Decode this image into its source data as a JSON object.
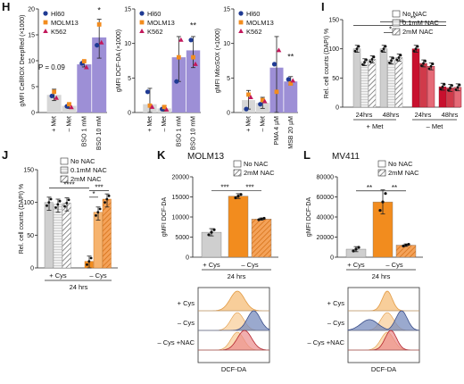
{
  "panels": {
    "H1": {
      "letter": "H",
      "ylabel": "gMFI CellROX DeepRed (×1000)",
      "yticks": [
        "0",
        "5",
        "10",
        "15",
        "20"
      ],
      "ymax": 20,
      "legend": [
        "Hl60",
        "MOLM13",
        "K562"
      ],
      "categories": [
        "+ Met",
        "– Met",
        "BSO 1 mM",
        "BSO 10 mM"
      ],
      "values": [
        3.4,
        1.3,
        9.3,
        14.5
      ],
      "colors": [
        "#d7d7d7",
        "#d7d7d7",
        "#9d8fd6",
        "#9d8fd6"
      ],
      "annotation": "P = 0.09",
      "star": "*"
    },
    "H2": {
      "ylabel": "gMFI DCF-DA (×1000)",
      "yticks": [
        "0",
        "5",
        "10",
        "15"
      ],
      "ymax": 15,
      "legend": [
        "Hl60",
        "MOLM13",
        "K562"
      ],
      "categories": [
        "+ Met",
        "– Met",
        "BSO 1 mM",
        "BSO 10 mM"
      ],
      "values": [
        1.2,
        0.6,
        8.0,
        9.0
      ],
      "colors": [
        "#d7d7d7",
        "#d7d7d7",
        "#9d8fd6",
        "#9d8fd6"
      ],
      "star": "**"
    },
    "H3": {
      "ylabel": "gMFI MitoSOX (×1000)",
      "yticks": [
        "0",
        "5",
        "10",
        "15"
      ],
      "ymax": 15,
      "legend": [
        "Hl60",
        "MOLM13",
        "K562"
      ],
      "categories": [
        "+ Met",
        "– Met",
        "PMA 4 µM",
        "MSB 20 µM"
      ],
      "values": [
        1.8,
        1.4,
        6.5,
        4.5
      ],
      "colors": [
        "#d7d7d7",
        "#d7d7d7",
        "#9d8fd6",
        "#9d8fd6"
      ],
      "star": "**"
    },
    "I": {
      "letter": "I",
      "ylabel": "Rel. cell counts (DAPI) %",
      "yticks": [
        "0",
        "50",
        "100",
        "150"
      ],
      "ymax": 150,
      "legend": [
        "No NAC",
        "0.1mM NAC",
        "2mM NAC"
      ],
      "groups": [
        "24hrs",
        "48hrs",
        "24hrs",
        "48hrs"
      ],
      "conditions": [
        "+ Met",
        "– Met"
      ],
      "values": [
        [
          100,
          77,
          82
        ],
        [
          100,
          80,
          85
        ],
        [
          100,
          75,
          70
        ],
        [
          35,
          33,
          34
        ]
      ],
      "stars": [
        "**",
        "*",
        "***"
      ]
    },
    "J": {
      "letter": "J",
      "ylabel": "Rel. cell counts (DAPI) %",
      "yticks": [
        "0",
        "50",
        "100",
        "150"
      ],
      "ymax": 150,
      "legend": [
        "No NAC",
        "0.1mM NAC",
        "2mM NAC"
      ],
      "groups": [
        "+ Cys",
        "– Cys"
      ],
      "footer": "24 hrs",
      "values": [
        [
          100,
          97,
          99
        ],
        [
          10,
          85,
          105
        ]
      ],
      "stars": [
        "****",
        "*",
        "***"
      ]
    },
    "K": {
      "letter": "K",
      "title": "MOLM13",
      "ylabel": "gMFI DCF-DA",
      "yticks": [
        "0",
        "5000",
        "10000",
        "15000",
        "20000"
      ],
      "ymax": 20000,
      "legend": [
        "No NAC",
        "2mM NAC"
      ],
      "groups": [
        "+ Cys",
        "– Cys"
      ],
      "footer": "24 hrs",
      "values": [
        6200,
        15200,
        9500
      ],
      "stars": [
        "***",
        "***"
      ],
      "hist_labels": [
        "+ Cys",
        "– Cys",
        "– Cys +NAC"
      ],
      "hist_xlabel": "DCF-DA"
    },
    "L": {
      "letter": "L",
      "title": "MV411",
      "ylabel": "gMFI DCF-DA",
      "yticks": [
        "0",
        "20000",
        "40000",
        "60000",
        "80000"
      ],
      "ymax": 80000,
      "legend": [
        "No NAC",
        "2mM NAC"
      ],
      "groups": [
        "+ Cys",
        "– Cys"
      ],
      "footer": "24 hrs",
      "values": [
        8000,
        55000,
        12000
      ],
      "stars": [
        "**",
        "**"
      ],
      "hist_labels": [
        "+ Cys",
        "– Cys",
        "– Cys +NAC"
      ],
      "hist_xlabel": "DCF-DA"
    }
  },
  "chart_data": [
    {
      "type": "bar",
      "title": "",
      "ylabel": "gMFI CellROX DeepRed (×1000)",
      "categories": [
        "+ Met",
        "– Met",
        "BSO 1 mM",
        "BSO 10 mM"
      ],
      "values": [
        3.4,
        1.3,
        9.3,
        14.5
      ],
      "ylim": [
        0,
        20
      ]
    },
    {
      "type": "bar",
      "title": "",
      "ylabel": "gMFI DCF-DA (×1000)",
      "categories": [
        "+ Met",
        "– Met",
        "BSO 1 mM",
        "BSO 10 mM"
      ],
      "values": [
        1.2,
        0.6,
        8.0,
        9.0
      ],
      "ylim": [
        0,
        15
      ]
    },
    {
      "type": "bar",
      "title": "",
      "ylabel": "gMFI MitoSOX (×1000)",
      "categories": [
        "+ Met",
        "– Met",
        "PMA 4 µM",
        "MSB 20 µM"
      ],
      "values": [
        1.8,
        1.4,
        6.5,
        4.5
      ],
      "ylim": [
        0,
        15
      ]
    },
    {
      "type": "bar",
      "title": "",
      "ylabel": "Rel. cell counts (DAPI) %",
      "categories": [
        "+ Met 24hrs",
        "+ Met 48hrs",
        "– Met 24hrs",
        "– Met 48hrs"
      ],
      "series": [
        {
          "name": "No NAC",
          "values": [
            100,
            100,
            100,
            35
          ]
        },
        {
          "name": "0.1mM NAC",
          "values": [
            77,
            80,
            75,
            33
          ]
        },
        {
          "name": "2mM NAC",
          "values": [
            82,
            85,
            70,
            34
          ]
        }
      ],
      "ylim": [
        0,
        150
      ]
    },
    {
      "type": "bar",
      "title": "",
      "ylabel": "Rel. cell counts (DAPI) %",
      "categories": [
        "+ Cys",
        "– Cys"
      ],
      "series": [
        {
          "name": "No NAC",
          "values": [
            100,
            10
          ]
        },
        {
          "name": "0.1mM NAC",
          "values": [
            97,
            85
          ]
        },
        {
          "name": "2mM NAC",
          "values": [
            99,
            105
          ]
        }
      ],
      "ylim": [
        0,
        150
      ]
    },
    {
      "type": "bar",
      "title": "MOLM13",
      "ylabel": "gMFI DCF-DA",
      "categories": [
        "+ Cys",
        "– Cys",
        "– Cys 2mM NAC"
      ],
      "values": [
        6200,
        15200,
        9500
      ],
      "ylim": [
        0,
        20000
      ]
    },
    {
      "type": "bar",
      "title": "MV411",
      "ylabel": "gMFI DCF-DA",
      "categories": [
        "+ Cys",
        "– Cys",
        "– Cys 2mM NAC"
      ],
      "values": [
        8000,
        55000,
        12000
      ],
      "ylim": [
        0,
        80000
      ]
    }
  ]
}
